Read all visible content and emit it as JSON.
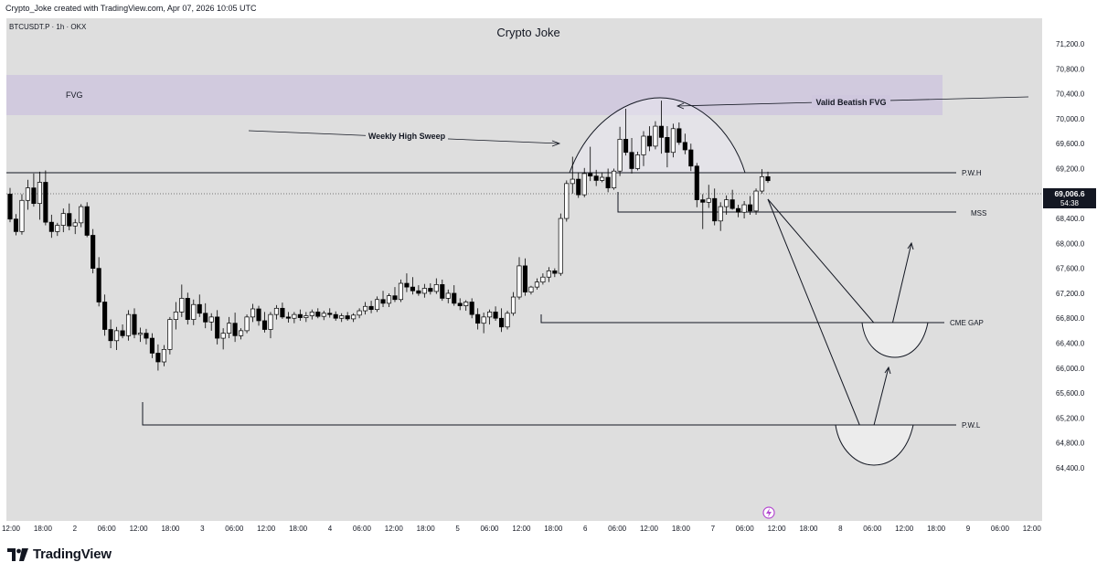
{
  "header": {
    "created_by": "Crypto_Joke created with TradingView.com, Apr 07, 2026 10:05 UTC"
  },
  "footer": {
    "brand": "TradingView"
  },
  "colors": {
    "background": "#dedede",
    "axis_background": "#ffffff",
    "fvg_zone": "#cfc7de",
    "sweep_zone": "#e8e6ee",
    "candle_up": "#ffffff",
    "candle_down": "#000000",
    "line": "#131722"
  },
  "chart_data": {
    "type": "candlestick",
    "symbol_line": "BTCUSDT.P · 1h · OKX",
    "title": "Crypto Joke",
    "price_axis": {
      "range": [
        64200,
        71400
      ],
      "ticks": [
        "71,200.0",
        "70,800.0",
        "70,400.0",
        "70,000.0",
        "69,600.0",
        "69,200.0",
        "68,800.0",
        "68,400.0",
        "68,000.0",
        "67,600.0",
        "67,200.0",
        "66,800.0",
        "66,400.0",
        "66,000.0",
        "65,600.0",
        "65,200.0",
        "64,800.0",
        "64,400.0"
      ],
      "last_price": "69,006.6",
      "countdown": "54:38"
    },
    "time_axis": {
      "ticks": [
        "12:00",
        "18:00",
        "2",
        "06:00",
        "12:00",
        "18:00",
        "3",
        "06:00",
        "12:00",
        "18:00",
        "4",
        "06:00",
        "12:00",
        "18:00",
        "5",
        "06:00",
        "12:00",
        "18:00",
        "6",
        "06:00",
        "12:00",
        "18:00",
        "7",
        "06:00",
        "12:00",
        "18:00",
        "8",
        "06:00",
        "12:00",
        "18:00",
        "9",
        "06:00",
        "12:00"
      ]
    },
    "levels": [
      {
        "label": "P.W.H",
        "price": 69310
      },
      {
        "label": "MSS",
        "price": 68740
      },
      {
        "label": "CME GAP",
        "price": 67140
      },
      {
        "label": "P.W.L",
        "price": 65640
      }
    ],
    "zones": [
      {
        "label": "FVG",
        "top": 70740,
        "bottom": 70140
      }
    ],
    "annotations": [
      {
        "text": "Weekly High Sweep"
      },
      {
        "text": "Valid Beatish FVG"
      }
    ],
    "candles": [
      {
        "o": 68790,
        "h": 68890,
        "l": 68340,
        "c": 68390
      },
      {
        "o": 68390,
        "h": 68470,
        "l": 68130,
        "c": 68190
      },
      {
        "o": 68190,
        "h": 68790,
        "l": 68140,
        "c": 68690
      },
      {
        "o": 68690,
        "h": 69020,
        "l": 68540,
        "c": 68890
      },
      {
        "o": 68890,
        "h": 69120,
        "l": 68590,
        "c": 68640
      },
      {
        "o": 68640,
        "h": 69150,
        "l": 68380,
        "c": 68980
      },
      {
        "o": 68980,
        "h": 69170,
        "l": 68290,
        "c": 68340
      },
      {
        "o": 68340,
        "h": 68460,
        "l": 68090,
        "c": 68190
      },
      {
        "o": 68190,
        "h": 68330,
        "l": 68120,
        "c": 68290
      },
      {
        "o": 68290,
        "h": 68560,
        "l": 68180,
        "c": 68480
      },
      {
        "o": 68480,
        "h": 68640,
        "l": 68210,
        "c": 68280
      },
      {
        "o": 68280,
        "h": 68390,
        "l": 68150,
        "c": 68330
      },
      {
        "o": 68330,
        "h": 68630,
        "l": 68260,
        "c": 68590
      },
      {
        "o": 68590,
        "h": 68660,
        "l": 68100,
        "c": 68130
      },
      {
        "o": 68130,
        "h": 68230,
        "l": 67520,
        "c": 67600
      },
      {
        "o": 67600,
        "h": 67780,
        "l": 66990,
        "c": 67060
      },
      {
        "o": 67060,
        "h": 67180,
        "l": 66520,
        "c": 66620
      },
      {
        "o": 66620,
        "h": 66780,
        "l": 66320,
        "c": 66440
      },
      {
        "o": 66440,
        "h": 66660,
        "l": 66290,
        "c": 66600
      },
      {
        "o": 66600,
        "h": 66700,
        "l": 66480,
        "c": 66520
      },
      {
        "o": 66520,
        "h": 66930,
        "l": 66440,
        "c": 66860
      },
      {
        "o": 66860,
        "h": 66960,
        "l": 66480,
        "c": 66540
      },
      {
        "o": 66540,
        "h": 66650,
        "l": 66420,
        "c": 66560
      },
      {
        "o": 66560,
        "h": 66630,
        "l": 66380,
        "c": 66480
      },
      {
        "o": 66480,
        "h": 66560,
        "l": 66160,
        "c": 66240
      },
      {
        "o": 66240,
        "h": 66380,
        "l": 65960,
        "c": 66100
      },
      {
        "o": 66100,
        "h": 66370,
        "l": 66030,
        "c": 66300
      },
      {
        "o": 66300,
        "h": 66820,
        "l": 66220,
        "c": 66780
      },
      {
        "o": 66780,
        "h": 67060,
        "l": 66620,
        "c": 66900
      },
      {
        "o": 66900,
        "h": 67340,
        "l": 66820,
        "c": 67120
      },
      {
        "o": 67120,
        "h": 67210,
        "l": 66700,
        "c": 66780
      },
      {
        "o": 66780,
        "h": 67100,
        "l": 66690,
        "c": 67020
      },
      {
        "o": 67020,
        "h": 67180,
        "l": 66820,
        "c": 66880
      },
      {
        "o": 66880,
        "h": 67040,
        "l": 66640,
        "c": 66740
      },
      {
        "o": 66740,
        "h": 66880,
        "l": 66600,
        "c": 66820
      },
      {
        "o": 66820,
        "h": 66930,
        "l": 66380,
        "c": 66480
      },
      {
        "o": 66480,
        "h": 66640,
        "l": 66300,
        "c": 66560
      },
      {
        "o": 66560,
        "h": 66820,
        "l": 66480,
        "c": 66720
      },
      {
        "o": 66720,
        "h": 66890,
        "l": 66420,
        "c": 66520
      },
      {
        "o": 66520,
        "h": 66640,
        "l": 66460,
        "c": 66600
      },
      {
        "o": 66600,
        "h": 66860,
        "l": 66560,
        "c": 66820
      },
      {
        "o": 66820,
        "h": 67030,
        "l": 66740,
        "c": 66950
      },
      {
        "o": 66950,
        "h": 67000,
        "l": 66680,
        "c": 66760
      },
      {
        "o": 66760,
        "h": 66900,
        "l": 66570,
        "c": 66620
      },
      {
        "o": 66620,
        "h": 66900,
        "l": 66480,
        "c": 66860
      },
      {
        "o": 66860,
        "h": 67010,
        "l": 66780,
        "c": 66960
      },
      {
        "o": 66960,
        "h": 67050,
        "l": 66790,
        "c": 66820
      },
      {
        "o": 66820,
        "h": 66900,
        "l": 66730,
        "c": 66800
      },
      {
        "o": 66800,
        "h": 66900,
        "l": 66720,
        "c": 66860
      },
      {
        "o": 66860,
        "h": 66940,
        "l": 66760,
        "c": 66810
      },
      {
        "o": 66810,
        "h": 66900,
        "l": 66740,
        "c": 66840
      },
      {
        "o": 66840,
        "h": 66940,
        "l": 66780,
        "c": 66900
      },
      {
        "o": 66900,
        "h": 66960,
        "l": 66800,
        "c": 66830
      },
      {
        "o": 66830,
        "h": 66920,
        "l": 66770,
        "c": 66880
      },
      {
        "o": 66880,
        "h": 66960,
        "l": 66810,
        "c": 66860
      },
      {
        "o": 66860,
        "h": 66910,
        "l": 66760,
        "c": 66800
      },
      {
        "o": 66800,
        "h": 66880,
        "l": 66740,
        "c": 66840
      },
      {
        "o": 66840,
        "h": 66900,
        "l": 66760,
        "c": 66790
      },
      {
        "o": 66790,
        "h": 66880,
        "l": 66740,
        "c": 66850
      },
      {
        "o": 66850,
        "h": 66960,
        "l": 66800,
        "c": 66920
      },
      {
        "o": 66920,
        "h": 67060,
        "l": 66860,
        "c": 66990
      },
      {
        "o": 66990,
        "h": 67080,
        "l": 66880,
        "c": 66940
      },
      {
        "o": 66940,
        "h": 67150,
        "l": 66900,
        "c": 67100
      },
      {
        "o": 67100,
        "h": 67240,
        "l": 66980,
        "c": 67040
      },
      {
        "o": 67040,
        "h": 67200,
        "l": 66980,
        "c": 67160
      },
      {
        "o": 67160,
        "h": 67300,
        "l": 67060,
        "c": 67100
      },
      {
        "o": 67100,
        "h": 67420,
        "l": 67060,
        "c": 67360
      },
      {
        "o": 67360,
        "h": 67520,
        "l": 67220,
        "c": 67300
      },
      {
        "o": 67300,
        "h": 67460,
        "l": 67180,
        "c": 67240
      },
      {
        "o": 67240,
        "h": 67330,
        "l": 67160,
        "c": 67200
      },
      {
        "o": 67200,
        "h": 67350,
        "l": 67130,
        "c": 67280
      },
      {
        "o": 67280,
        "h": 67360,
        "l": 67180,
        "c": 67230
      },
      {
        "o": 67230,
        "h": 67440,
        "l": 67190,
        "c": 67340
      },
      {
        "o": 67340,
        "h": 67420,
        "l": 67080,
        "c": 67120
      },
      {
        "o": 67120,
        "h": 67260,
        "l": 67040,
        "c": 67200
      },
      {
        "o": 67200,
        "h": 67330,
        "l": 67000,
        "c": 67040
      },
      {
        "o": 67040,
        "h": 67120,
        "l": 66930,
        "c": 67000
      },
      {
        "o": 67000,
        "h": 67090,
        "l": 66920,
        "c": 67060
      },
      {
        "o": 67060,
        "h": 67120,
        "l": 66800,
        "c": 66860
      },
      {
        "o": 66860,
        "h": 66960,
        "l": 66620,
        "c": 66720
      },
      {
        "o": 66720,
        "h": 66890,
        "l": 66560,
        "c": 66820
      },
      {
        "o": 66820,
        "h": 66940,
        "l": 66700,
        "c": 66900
      },
      {
        "o": 66900,
        "h": 66990,
        "l": 66760,
        "c": 66800
      },
      {
        "o": 66800,
        "h": 66960,
        "l": 66580,
        "c": 66660
      },
      {
        "o": 66660,
        "h": 66920,
        "l": 66620,
        "c": 66880
      },
      {
        "o": 66880,
        "h": 67220,
        "l": 66840,
        "c": 67140
      },
      {
        "o": 67140,
        "h": 67780,
        "l": 67100,
        "c": 67640
      },
      {
        "o": 67640,
        "h": 67760,
        "l": 67160,
        "c": 67220
      },
      {
        "o": 67220,
        "h": 67320,
        "l": 67180,
        "c": 67300
      },
      {
        "o": 67300,
        "h": 67440,
        "l": 67260,
        "c": 67380
      },
      {
        "o": 67380,
        "h": 67520,
        "l": 67340,
        "c": 67460
      },
      {
        "o": 67460,
        "h": 67620,
        "l": 67380,
        "c": 67560
      },
      {
        "o": 67560,
        "h": 67600,
        "l": 67460,
        "c": 67520
      },
      {
        "o": 67520,
        "h": 68480,
        "l": 67480,
        "c": 68400
      },
      {
        "o": 68400,
        "h": 69010,
        "l": 68350,
        "c": 68960
      },
      {
        "o": 68960,
        "h": 69390,
        "l": 68800,
        "c": 69030
      },
      {
        "o": 69030,
        "h": 69140,
        "l": 68730,
        "c": 68780
      },
      {
        "o": 68780,
        "h": 69210,
        "l": 68740,
        "c": 69120
      },
      {
        "o": 69120,
        "h": 69550,
        "l": 69000,
        "c": 69080
      },
      {
        "o": 69080,
        "h": 69180,
        "l": 68920,
        "c": 69010
      },
      {
        "o": 69010,
        "h": 69140,
        "l": 68980,
        "c": 69060
      },
      {
        "o": 69060,
        "h": 69200,
        "l": 68820,
        "c": 68890
      },
      {
        "o": 68890,
        "h": 69200,
        "l": 68860,
        "c": 69160
      },
      {
        "o": 69160,
        "h": 69870,
        "l": 69080,
        "c": 69670
      },
      {
        "o": 69670,
        "h": 70160,
        "l": 69410,
        "c": 69460
      },
      {
        "o": 69460,
        "h": 69690,
        "l": 69120,
        "c": 69200
      },
      {
        "o": 69200,
        "h": 69470,
        "l": 69170,
        "c": 69420
      },
      {
        "o": 69420,
        "h": 69800,
        "l": 69240,
        "c": 69720
      },
      {
        "o": 69720,
        "h": 69880,
        "l": 69480,
        "c": 69560
      },
      {
        "o": 69560,
        "h": 69960,
        "l": 69510,
        "c": 69880
      },
      {
        "o": 69880,
        "h": 70290,
        "l": 69440,
        "c": 69700
      },
      {
        "o": 69700,
        "h": 69880,
        "l": 69220,
        "c": 69460
      },
      {
        "o": 69460,
        "h": 69920,
        "l": 69380,
        "c": 69840
      },
      {
        "o": 69840,
        "h": 69940,
        "l": 69580,
        "c": 69620
      },
      {
        "o": 69620,
        "h": 69760,
        "l": 69430,
        "c": 69500
      },
      {
        "o": 69500,
        "h": 69600,
        "l": 69160,
        "c": 69240
      },
      {
        "o": 69240,
        "h": 69290,
        "l": 68580,
        "c": 68700
      },
      {
        "o": 68700,
        "h": 68790,
        "l": 68230,
        "c": 68660
      },
      {
        "o": 68660,
        "h": 68940,
        "l": 68570,
        "c": 68720
      },
      {
        "o": 68720,
        "h": 68880,
        "l": 68290,
        "c": 68360
      },
      {
        "o": 68360,
        "h": 68660,
        "l": 68200,
        "c": 68590
      },
      {
        "o": 68590,
        "h": 68770,
        "l": 68460,
        "c": 68700
      },
      {
        "o": 68700,
        "h": 68860,
        "l": 68540,
        "c": 68560
      },
      {
        "o": 68560,
        "h": 68620,
        "l": 68420,
        "c": 68500
      },
      {
        "o": 68500,
        "h": 68680,
        "l": 68400,
        "c": 68620
      },
      {
        "o": 68620,
        "h": 68760,
        "l": 68460,
        "c": 68520
      },
      {
        "o": 68520,
        "h": 68880,
        "l": 68460,
        "c": 68840
      },
      {
        "o": 68840,
        "h": 69190,
        "l": 68800,
        "c": 69070
      },
      {
        "o": 69070,
        "h": 69150,
        "l": 68970,
        "c": 69006
      }
    ]
  }
}
